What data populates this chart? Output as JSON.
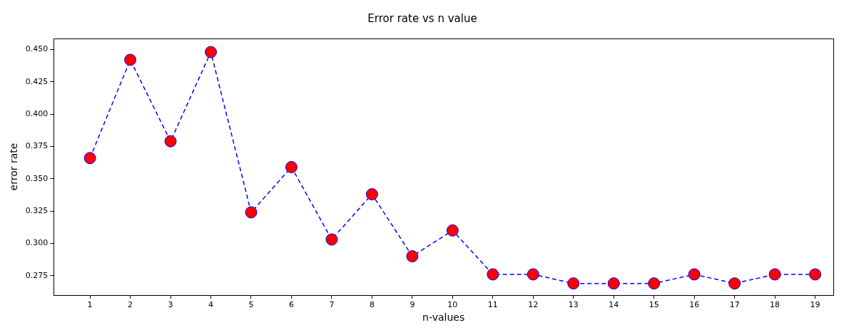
{
  "chart_data": {
    "type": "line",
    "title": "Error rate vs n value",
    "xlabel": "n-values",
    "ylabel": "error rate",
    "x": [
      1,
      2,
      3,
      4,
      5,
      6,
      7,
      8,
      9,
      10,
      11,
      12,
      13,
      14,
      15,
      16,
      17,
      18,
      19
    ],
    "series": [
      {
        "color": "#0000ff",
        "colors": [
          "#ff0000",
          "#ff0000",
          "#ff0000",
          "#ff0000",
          "#ff0000",
          "#ff0000",
          "#ff0000",
          "#ff0000",
          "#ff0000",
          "#ff0000",
          "#ff0000",
          "#ff0000",
          "#ff0000",
          "#ff0000",
          "#ff0000",
          "#ff0000",
          "#ff0000",
          "#ff0000",
          "#ff0000"
        ],
        "values": [
          0.366,
          0.442,
          0.379,
          0.448,
          0.324,
          0.359,
          0.303,
          0.338,
          0.29,
          0.31,
          0.276,
          0.276,
          0.269,
          0.269,
          0.269,
          0.276,
          0.269,
          0.276,
          0.276
        ]
      }
    ],
    "xlim": [
      0.1,
      19.45
    ],
    "ylim": [
      0.26,
      0.4585
    ],
    "xticks": [
      1,
      2,
      3,
      4,
      5,
      6,
      7,
      8,
      9,
      10,
      11,
      12,
      13,
      14,
      15,
      16,
      17,
      18,
      19
    ],
    "yticks": [
      {
        "value": 0.275,
        "label": "0.275"
      },
      {
        "value": 0.3,
        "label": "0.300"
      },
      {
        "value": 0.325,
        "label": "0.325"
      },
      {
        "value": 0.35,
        "label": "0.350"
      },
      {
        "value": 0.375,
        "label": "0.375"
      },
      {
        "value": 0.4,
        "label": "0.400"
      },
      {
        "value": 0.425,
        "label": "0.425"
      },
      {
        "value": 0.45,
        "label": "0.450"
      }
    ],
    "grid": false,
    "legend": false,
    "marker": "circle",
    "line_style": "dashed"
  }
}
